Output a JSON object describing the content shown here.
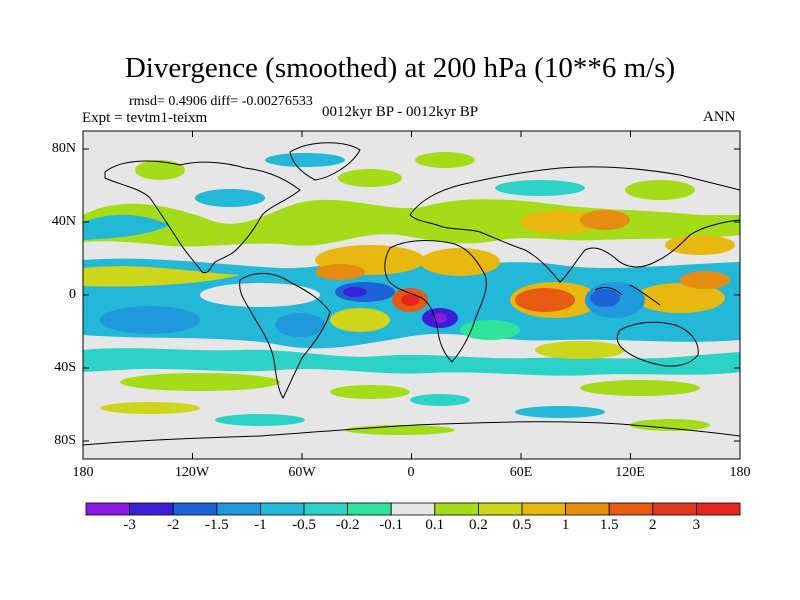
{
  "figure": {
    "title": "Divergence (smoothed) at 200 hPa (10**6 m/s)",
    "stats": "rmsd= 0.4906  diff= -0.00276533",
    "expt": "Expt = tevtm1-teixm",
    "period": "0012kyr BP - 0012kyr BP",
    "season": "ANN"
  },
  "map": {
    "lat_ticks": [
      "80N",
      "40N",
      "0",
      "40S",
      "80S"
    ],
    "lon_ticks": [
      "180",
      "120W",
      "60W",
      "0",
      "60E",
      "120E",
      "180"
    ],
    "background_color": "#e6e6e6"
  },
  "colorbar": {
    "labels": [
      "-3",
      "-2",
      "-1.5",
      "-1",
      "-0.5",
      "-0.2",
      "-0.1",
      "0.1",
      "0.2",
      "0.5",
      "1",
      "1.5",
      "2",
      "3"
    ],
    "colors": [
      "#8a1be0",
      "#3a1fd6",
      "#1d63d8",
      "#1f98dc",
      "#24b8d8",
      "#2ad2c8",
      "#2ee39a",
      "#e6e6e6",
      "#a5dc18",
      "#cfd51a",
      "#e7b80f",
      "#e68c10",
      "#e65a12",
      "#e4361a",
      "#e3261e"
    ]
  }
}
